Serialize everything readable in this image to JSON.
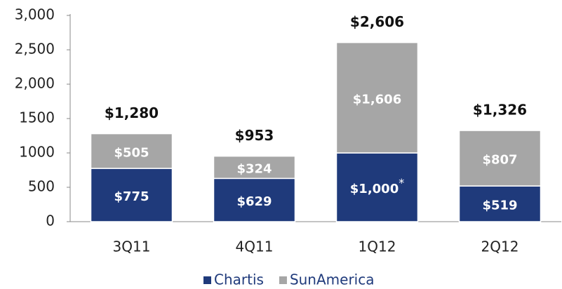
{
  "chart_data": {
    "type": "stacked_bar",
    "categories": [
      "3Q11",
      "4Q11",
      "1Q12",
      "2Q12"
    ],
    "series": [
      {
        "name": "Chartis",
        "color": "#1f3a7b",
        "values": [
          775,
          629,
          1000,
          519
        ],
        "value_labels": [
          "$775",
          "$629",
          "$1,000*",
          "$519"
        ]
      },
      {
        "name": "SunAmerica",
        "color": "#a6a6a6",
        "values": [
          505,
          324,
          1606,
          807
        ],
        "value_labels": [
          "$505",
          "$324",
          "$1,606",
          "$807"
        ]
      }
    ],
    "totals": [
      1280,
      953,
      2606,
      1326
    ],
    "total_labels": [
      "$1,280",
      "$953",
      "$2,606",
      "$1,326"
    ],
    "ylim": [
      0,
      3000
    ],
    "yticks": [
      0,
      500,
      1000,
      1500,
      {
        "value": 2000,
        "label": "2,000"
      },
      {
        "value": 2500,
        "label": "2,500"
      },
      {
        "value": 3000,
        "label": "3,000"
      }
    ],
    "legend": "bottom"
  }
}
